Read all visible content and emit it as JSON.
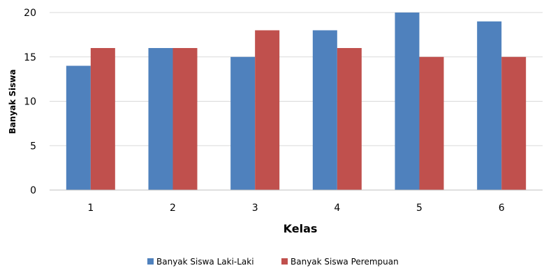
{
  "chart_data": {
    "type": "bar",
    "title": "",
    "xlabel": "Kelas",
    "ylabel": "Banyak Siswa",
    "categories": [
      "1",
      "2",
      "3",
      "4",
      "5",
      "6"
    ],
    "ylim": [
      0,
      20
    ],
    "yticks": [
      "0",
      "5",
      "10",
      "15",
      "20"
    ],
    "grid": true,
    "legend_position": "bottom",
    "series": [
      {
        "name": "Banyak Siswa Laki-Laki",
        "values": [
          14,
          16,
          15,
          18,
          20,
          19
        ],
        "color": "#4F81BD"
      },
      {
        "name": "Banyak Siswa Perempuan",
        "values": [
          16,
          16,
          18,
          16,
          15,
          15
        ],
        "color": "#C0504D"
      }
    ]
  }
}
